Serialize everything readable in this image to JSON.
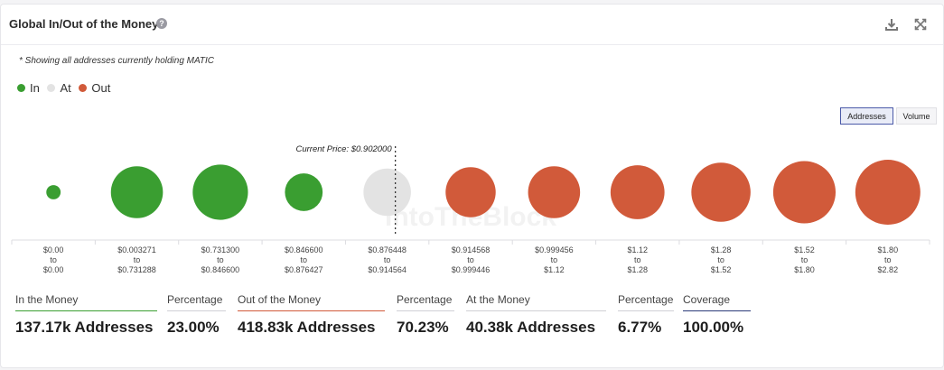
{
  "widget": {
    "title": "Global In/Out of the Money",
    "help_icon": "question-icon",
    "download_icon": "download-icon",
    "expand_icon": "expand-icon"
  },
  "note": "* Showing all addresses currently holding MATIC",
  "legend": [
    {
      "label": "In",
      "color": "#3a9e31"
    },
    {
      "label": "At",
      "color": "#e3e3e3"
    },
    {
      "label": "Out",
      "color": "#d15a3a"
    }
  ],
  "toggle": {
    "addresses_label": "Addresses",
    "volume_label": "Volume",
    "active": "Addresses"
  },
  "watermark": "IntoTheBlock",
  "chart_data": {
    "type": "bubble",
    "current_price_label": "Current Price: $0.902000",
    "current_price_after_index": 4,
    "bubbles": [
      {
        "from": "$0.00",
        "to": "$0.00",
        "status": "in",
        "relative_size": 0.22
      },
      {
        "from": "$0.003271",
        "to": "$0.731288",
        "status": "in",
        "relative_size": 0.8
      },
      {
        "from": "$0.731300",
        "to": "$0.846600",
        "status": "in",
        "relative_size": 0.85
      },
      {
        "from": "$0.846600",
        "to": "$0.876427",
        "status": "in",
        "relative_size": 0.58
      },
      {
        "from": "$0.876448",
        "to": "$0.914564",
        "status": "at",
        "relative_size": 0.73
      },
      {
        "from": "$0.914568",
        "to": "$0.999446",
        "status": "out",
        "relative_size": 0.77
      },
      {
        "from": "$0.999456",
        "to": "$1.12",
        "status": "out",
        "relative_size": 0.8
      },
      {
        "from": "$1.12",
        "to": "$1.28",
        "status": "out",
        "relative_size": 0.83
      },
      {
        "from": "$1.28",
        "to": "$1.52",
        "status": "out",
        "relative_size": 0.91
      },
      {
        "from": "$1.52",
        "to": "$1.80",
        "status": "out",
        "relative_size": 0.96
      },
      {
        "from": "$1.80",
        "to": "$2.82",
        "status": "out",
        "relative_size": 1.0
      }
    ],
    "colors": {
      "in": "#3a9e31",
      "at": "#e3e3e3",
      "out": "#d15a3a"
    },
    "to_word": "to"
  },
  "stats": [
    {
      "label": "In the Money",
      "value": "137.17k Addresses",
      "accent": "#3a9e31"
    },
    {
      "label": "Percentage",
      "value": "23.00%",
      "accent": ""
    },
    {
      "label": "Out of the Money",
      "value": "418.83k Addresses",
      "accent": "#d15a3a"
    },
    {
      "label": "Percentage",
      "value": "70.23%",
      "accent": ""
    },
    {
      "label": "At the Money",
      "value": "40.38k Addresses",
      "accent": "#cfcfd4"
    },
    {
      "label": "Percentage",
      "value": "6.77%",
      "accent": ""
    },
    {
      "label": "Coverage",
      "value": "100.00%",
      "accent": "#2b3a78"
    }
  ]
}
